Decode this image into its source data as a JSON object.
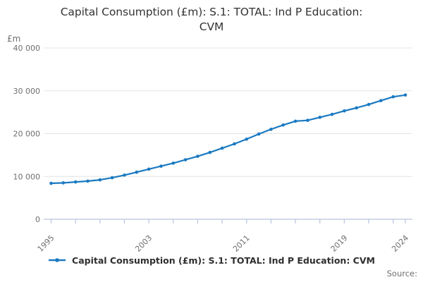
{
  "title_lines": [
    "Capital Consumption (£m): S.1: TOTAL: Ind P Education:",
    "CVM"
  ],
  "y_axis": {
    "unit": "£m",
    "tick_labels": [
      "40 000",
      "30 000",
      "20 000",
      "10 000",
      "0"
    ],
    "tick_values": [
      40000,
      30000,
      20000,
      10000,
      0
    ]
  },
  "x_axis": {
    "tick_years": [
      1995,
      1997,
      1999,
      2001,
      2003,
      2005,
      2007,
      2009,
      2011,
      2013,
      2015,
      2017,
      2019,
      2021,
      2023,
      2024
    ],
    "label_years": [
      1995,
      2003,
      2011,
      2019,
      2024
    ]
  },
  "legend": {
    "label": "Capital Consumption (£m): S.1: TOTAL: Ind P Education: CVM"
  },
  "source_label": "Source:",
  "colors": {
    "line": "#1b7ac1",
    "grid": "#e4e4e4",
    "axis": "#b7c3dd",
    "title_text": "#343434",
    "tick_text": "#6e6e6e",
    "legend_text": "#2f2f2f",
    "source_text": "#6e6e6e"
  },
  "chart_data": {
    "type": "line",
    "title": "Capital Consumption (£m): S.1: TOTAL: Ind P Education: CVM",
    "xlabel": "",
    "ylabel": "£m",
    "ylim": [
      0,
      40000
    ],
    "grid": "horizontal",
    "legend_position": "bottom",
    "markers": true,
    "x": [
      1995,
      1996,
      1997,
      1998,
      1999,
      2000,
      2001,
      2002,
      2003,
      2004,
      2005,
      2006,
      2007,
      2008,
      2009,
      2010,
      2011,
      2012,
      2013,
      2014,
      2015,
      2016,
      2017,
      2018,
      2019,
      2020,
      2021,
      2022,
      2023,
      2024
    ],
    "values": [
      8400,
      8500,
      8700,
      8900,
      9200,
      9700,
      10300,
      11000,
      11700,
      12400,
      13100,
      13900,
      14700,
      15600,
      16600,
      17600,
      18700,
      19900,
      21000,
      22000,
      22900,
      23100,
      23800,
      24500,
      25300,
      26000,
      26800,
      27700,
      28600,
      29000
    ]
  }
}
